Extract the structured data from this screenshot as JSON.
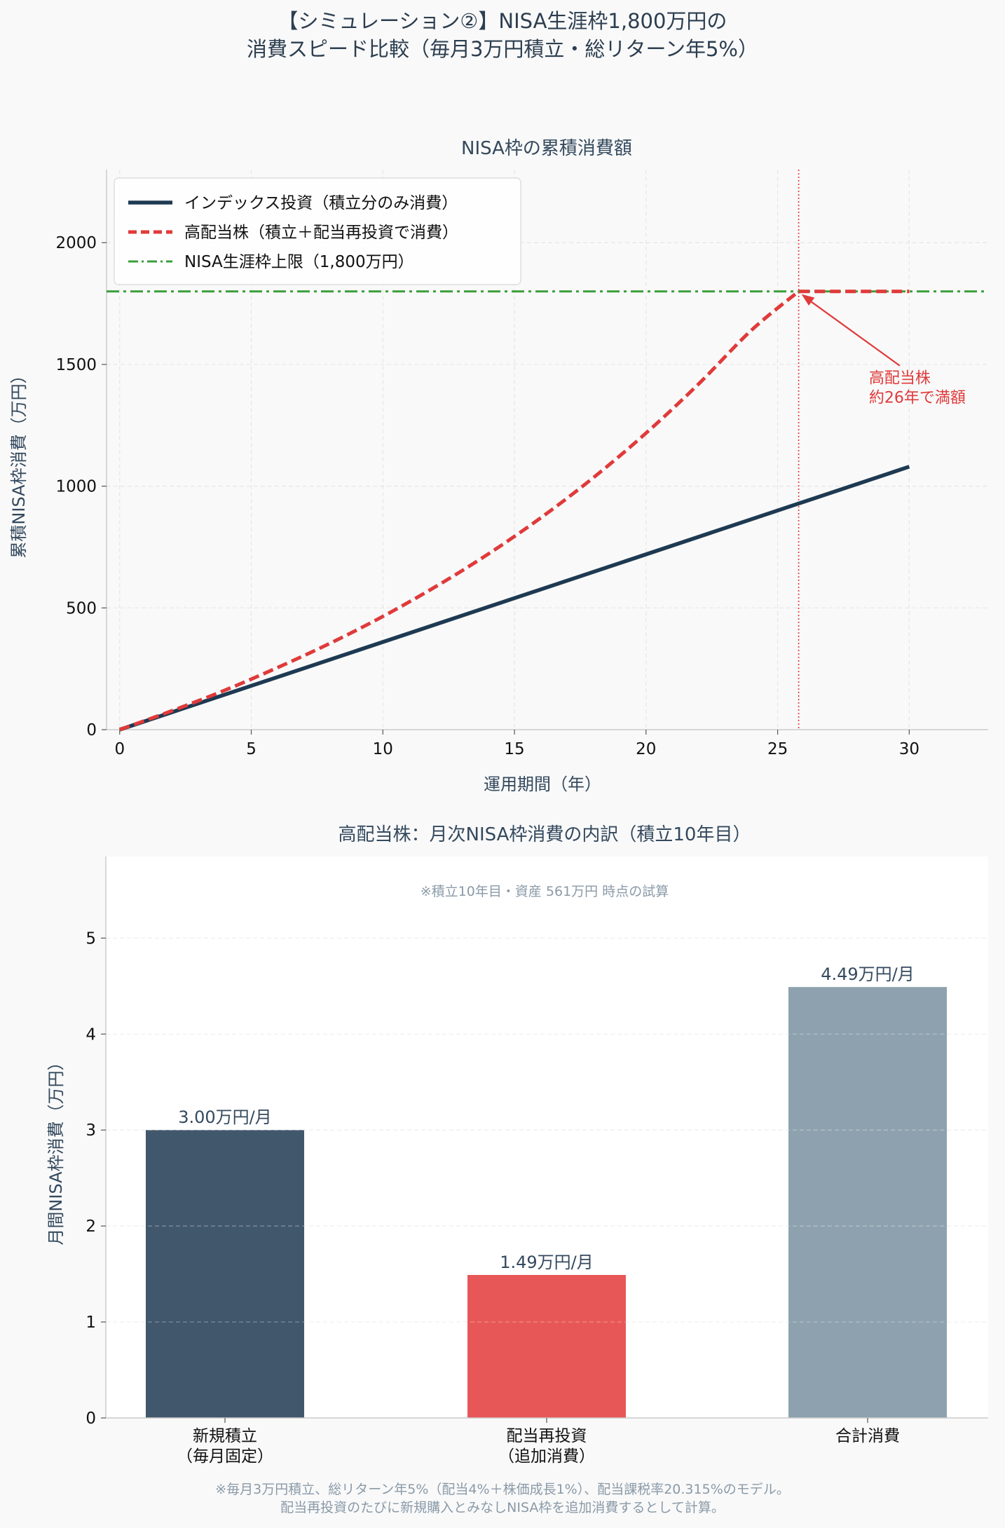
{
  "suptitle": {
    "line1": "【シミュレーション②】NISA生涯枠1,800万円の",
    "line2": "消費スピード比較（毎月3万円積立・総リターン年5%）"
  },
  "colors": {
    "index": "#1e3a52",
    "dividend": "#e03a3a",
    "limit": "#3a9e3a",
    "bar_new": "#41576c",
    "bar_div": "#e85757",
    "bar_total": "#8da2ae",
    "note": "#8a9aa8"
  },
  "footnote": {
    "line1": "※毎月3万円積立、総リターン年5%（配当4%＋株価成長1%）、配当課税率20.315%のモデル。",
    "line2": "配当再投資のたびに新規購入とみなしNISA枠を追加消費するとして計算。"
  },
  "chart_data": [
    {
      "type": "line",
      "title": "NISA枠の累積消費額",
      "xlabel": "運用期間（年）",
      "ylabel": "累積NISA枠消費（万円）",
      "xlim": [
        -0.5,
        33
      ],
      "ylim": [
        0,
        2300
      ],
      "xticks": [
        0,
        5,
        10,
        15,
        20,
        25,
        30
      ],
      "yticks": [
        0,
        500,
        1000,
        1500,
        2000
      ],
      "grid": true,
      "legend_position": "top-left",
      "series": [
        {
          "name": "インデックス投資（積立分のみ消費）",
          "style": "solid",
          "x": [
            0,
            30
          ],
          "y": [
            0,
            1080
          ]
        },
        {
          "name": "高配当株（積立＋配当再投資で消費）",
          "style": "dashed",
          "x": [
            0,
            2,
            4,
            6,
            8,
            10,
            12,
            14,
            16,
            18,
            20,
            22,
            24,
            25.8,
            28,
            30
          ],
          "y": [
            0,
            78,
            162,
            255,
            355,
            465,
            587,
            721,
            870,
            1035,
            1218,
            1420,
            1640,
            1800,
            1800,
            1800
          ]
        },
        {
          "name": "NISA生涯枠上限（1,800万円）",
          "style": "dashdot",
          "y_constant": 1800
        }
      ],
      "vline_x": 25.8,
      "annotation": {
        "line1": "高配当株",
        "line2": "約26年で満額",
        "point": [
          25.8,
          1800
        ],
        "text_at": [
          29.8,
          1420
        ]
      }
    },
    {
      "type": "bar",
      "title": "高配当株：月次NISA枠消費の内訳（積立10年目）",
      "subtitle": "※積立10年目・資産 561万円 時点の試算",
      "ylabel": "月間NISA枠消費（万円）",
      "ylim": [
        0,
        5.85
      ],
      "yticks": [
        0,
        1,
        2,
        3,
        4,
        5
      ],
      "grid": true,
      "categories": [
        {
          "line1": "新規積立",
          "line2": "（毎月固定）"
        },
        {
          "line1": "配当再投資",
          "line2": "（追加消費）"
        },
        {
          "line1": "合計消費",
          "line2": ""
        }
      ],
      "values": [
        3.0,
        1.49,
        4.49
      ],
      "value_labels": [
        "3.00万円/月",
        "1.49万円/月",
        "4.49万円/月"
      ]
    }
  ]
}
